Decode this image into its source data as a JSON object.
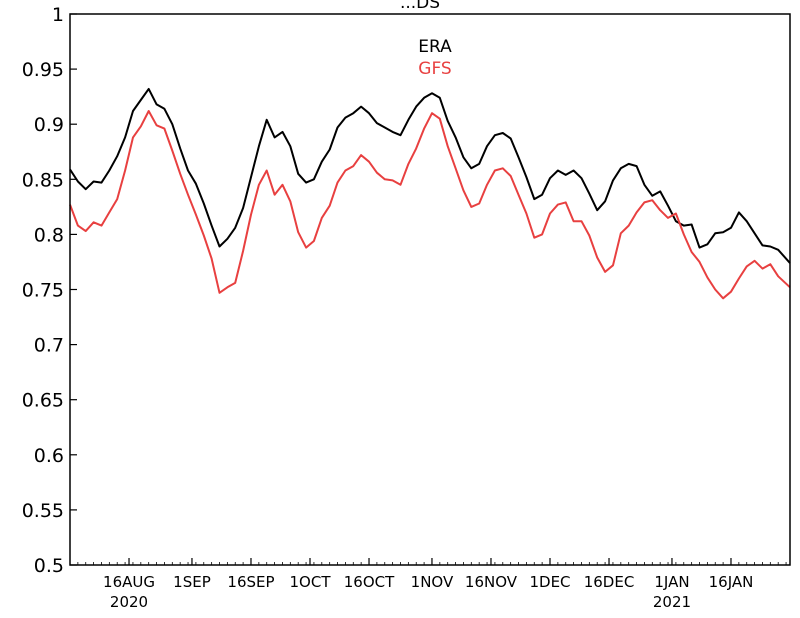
{
  "chart_data": {
    "type": "line",
    "title_fragment": "...DS",
    "xlabel": "",
    "ylabel": "",
    "ylim": [
      0.5,
      1.0
    ],
    "xlim": [
      "2020-08-01",
      "2021-01-31"
    ],
    "yticks": [
      "0.5",
      "0.55",
      "0.6",
      "0.65",
      "0.7",
      "0.75",
      "0.8",
      "0.85",
      "0.9",
      "0.95",
      "1"
    ],
    "xticks": [
      {
        "date": "2020-08-16",
        "label": "16AUG",
        "sublabel": "2020"
      },
      {
        "date": "2020-09-01",
        "label": "1SEP",
        "sublabel": ""
      },
      {
        "date": "2020-09-16",
        "label": "16SEP",
        "sublabel": ""
      },
      {
        "date": "2020-10-01",
        "label": "1OCT",
        "sublabel": ""
      },
      {
        "date": "2020-10-16",
        "label": "16OCT",
        "sublabel": ""
      },
      {
        "date": "2020-11-01",
        "label": "1NOV",
        "sublabel": ""
      },
      {
        "date": "2020-11-16",
        "label": "16NOV",
        "sublabel": ""
      },
      {
        "date": "2020-12-01",
        "label": "1DEC",
        "sublabel": ""
      },
      {
        "date": "2020-12-16",
        "label": "16DEC",
        "sublabel": ""
      },
      {
        "date": "2021-01-01",
        "label": "1JAN",
        "sublabel": "2021"
      },
      {
        "date": "2021-01-16",
        "label": "16JAN",
        "sublabel": ""
      }
    ],
    "grid": false,
    "legend_position": "top-center",
    "series": [
      {
        "name": "ERA",
        "color": "#000000",
        "points": [
          [
            "2020-08-01",
            0.859
          ],
          [
            "2020-08-03",
            0.848
          ],
          [
            "2020-08-05",
            0.841
          ],
          [
            "2020-08-07",
            0.848
          ],
          [
            "2020-08-09",
            0.847
          ],
          [
            "2020-08-11",
            0.858
          ],
          [
            "2020-08-13",
            0.871
          ],
          [
            "2020-08-15",
            0.888
          ],
          [
            "2020-08-17",
            0.912
          ],
          [
            "2020-08-19",
            0.922
          ],
          [
            "2020-08-21",
            0.932
          ],
          [
            "2020-08-23",
            0.918
          ],
          [
            "2020-08-25",
            0.914
          ],
          [
            "2020-08-27",
            0.9
          ],
          [
            "2020-08-29",
            0.878
          ],
          [
            "2020-08-31",
            0.858
          ],
          [
            "2020-09-02",
            0.846
          ],
          [
            "2020-09-04",
            0.828
          ],
          [
            "2020-09-06",
            0.808
          ],
          [
            "2020-09-08",
            0.789
          ],
          [
            "2020-09-10",
            0.796
          ],
          [
            "2020-09-12",
            0.806
          ],
          [
            "2020-09-14",
            0.824
          ],
          [
            "2020-09-16",
            0.852
          ],
          [
            "2020-09-18",
            0.88
          ],
          [
            "2020-09-20",
            0.904
          ],
          [
            "2020-09-22",
            0.888
          ],
          [
            "2020-09-24",
            0.893
          ],
          [
            "2020-09-26",
            0.88
          ],
          [
            "2020-09-28",
            0.855
          ],
          [
            "2020-09-30",
            0.847
          ],
          [
            "2020-10-02",
            0.85
          ],
          [
            "2020-10-04",
            0.866
          ],
          [
            "2020-10-06",
            0.877
          ],
          [
            "2020-10-08",
            0.897
          ],
          [
            "2020-10-10",
            0.906
          ],
          [
            "2020-10-12",
            0.91
          ],
          [
            "2020-10-14",
            0.916
          ],
          [
            "2020-10-16",
            0.91
          ],
          [
            "2020-10-18",
            0.901
          ],
          [
            "2020-10-20",
            0.897
          ],
          [
            "2020-10-22",
            0.893
          ],
          [
            "2020-10-24",
            0.89
          ],
          [
            "2020-10-26",
            0.904
          ],
          [
            "2020-10-28",
            0.916
          ],
          [
            "2020-10-30",
            0.924
          ],
          [
            "2020-11-01",
            0.928
          ],
          [
            "2020-11-03",
            0.924
          ],
          [
            "2020-11-05",
            0.903
          ],
          [
            "2020-11-07",
            0.888
          ],
          [
            "2020-11-09",
            0.87
          ],
          [
            "2020-11-11",
            0.86
          ],
          [
            "2020-11-13",
            0.864
          ],
          [
            "2020-11-15",
            0.88
          ],
          [
            "2020-11-17",
            0.89
          ],
          [
            "2020-11-19",
            0.892
          ],
          [
            "2020-11-21",
            0.887
          ],
          [
            "2020-11-23",
            0.87
          ],
          [
            "2020-11-25",
            0.852
          ],
          [
            "2020-11-27",
            0.832
          ],
          [
            "2020-11-29",
            0.836
          ],
          [
            "2020-12-01",
            0.851
          ],
          [
            "2020-12-03",
            0.858
          ],
          [
            "2020-12-05",
            0.854
          ],
          [
            "2020-12-07",
            0.858
          ],
          [
            "2020-12-09",
            0.851
          ],
          [
            "2020-12-11",
            0.837
          ],
          [
            "2020-12-13",
            0.822
          ],
          [
            "2020-12-15",
            0.83
          ],
          [
            "2020-12-17",
            0.849
          ],
          [
            "2020-12-19",
            0.86
          ],
          [
            "2020-12-21",
            0.864
          ],
          [
            "2020-12-23",
            0.862
          ],
          [
            "2020-12-25",
            0.845
          ],
          [
            "2020-12-27",
            0.835
          ],
          [
            "2020-12-29",
            0.839
          ],
          [
            "2020-12-31",
            0.826
          ],
          [
            "2021-01-02",
            0.812
          ],
          [
            "2021-01-04",
            0.808
          ],
          [
            "2021-01-06",
            0.809
          ],
          [
            "2021-01-08",
            0.788
          ],
          [
            "2021-01-10",
            0.791
          ],
          [
            "2021-01-12",
            0.801
          ],
          [
            "2021-01-14",
            0.802
          ],
          [
            "2021-01-16",
            0.806
          ],
          [
            "2021-01-18",
            0.82
          ],
          [
            "2021-01-20",
            0.812
          ],
          [
            "2021-01-22",
            0.801
          ],
          [
            "2021-01-24",
            0.79
          ],
          [
            "2021-01-26",
            0.789
          ],
          [
            "2021-01-28",
            0.786
          ],
          [
            "2021-01-31",
            0.774
          ]
        ]
      },
      {
        "name": "GFS",
        "color": "#e84040",
        "points": [
          [
            "2020-08-01",
            0.827
          ],
          [
            "2020-08-03",
            0.808
          ],
          [
            "2020-08-05",
            0.803
          ],
          [
            "2020-08-07",
            0.811
          ],
          [
            "2020-08-09",
            0.808
          ],
          [
            "2020-08-11",
            0.82
          ],
          [
            "2020-08-13",
            0.832
          ],
          [
            "2020-08-15",
            0.858
          ],
          [
            "2020-08-17",
            0.888
          ],
          [
            "2020-08-19",
            0.898
          ],
          [
            "2020-08-21",
            0.912
          ],
          [
            "2020-08-23",
            0.899
          ],
          [
            "2020-08-25",
            0.896
          ],
          [
            "2020-08-27",
            0.876
          ],
          [
            "2020-08-29",
            0.855
          ],
          [
            "2020-08-31",
            0.836
          ],
          [
            "2020-09-02",
            0.818
          ],
          [
            "2020-09-04",
            0.799
          ],
          [
            "2020-09-06",
            0.778
          ],
          [
            "2020-09-08",
            0.747
          ],
          [
            "2020-09-10",
            0.752
          ],
          [
            "2020-09-12",
            0.756
          ],
          [
            "2020-09-14",
            0.785
          ],
          [
            "2020-09-16",
            0.818
          ],
          [
            "2020-09-18",
            0.845
          ],
          [
            "2020-09-20",
            0.858
          ],
          [
            "2020-09-22",
            0.836
          ],
          [
            "2020-09-24",
            0.845
          ],
          [
            "2020-09-26",
            0.83
          ],
          [
            "2020-09-28",
            0.802
          ],
          [
            "2020-09-30",
            0.788
          ],
          [
            "2020-10-02",
            0.794
          ],
          [
            "2020-10-04",
            0.815
          ],
          [
            "2020-10-06",
            0.826
          ],
          [
            "2020-10-08",
            0.847
          ],
          [
            "2020-10-10",
            0.858
          ],
          [
            "2020-10-12",
            0.862
          ],
          [
            "2020-10-14",
            0.872
          ],
          [
            "2020-10-16",
            0.866
          ],
          [
            "2020-10-18",
            0.856
          ],
          [
            "2020-10-20",
            0.85
          ],
          [
            "2020-10-22",
            0.849
          ],
          [
            "2020-10-24",
            0.845
          ],
          [
            "2020-10-26",
            0.864
          ],
          [
            "2020-10-28",
            0.878
          ],
          [
            "2020-10-30",
            0.896
          ],
          [
            "2020-11-01",
            0.91
          ],
          [
            "2020-11-03",
            0.905
          ],
          [
            "2020-11-05",
            0.88
          ],
          [
            "2020-11-07",
            0.86
          ],
          [
            "2020-11-09",
            0.84
          ],
          [
            "2020-11-11",
            0.825
          ],
          [
            "2020-11-13",
            0.828
          ],
          [
            "2020-11-15",
            0.845
          ],
          [
            "2020-11-17",
            0.858
          ],
          [
            "2020-11-19",
            0.86
          ],
          [
            "2020-11-21",
            0.853
          ],
          [
            "2020-11-23",
            0.836
          ],
          [
            "2020-11-25",
            0.819
          ],
          [
            "2020-11-27",
            0.797
          ],
          [
            "2020-11-29",
            0.8
          ],
          [
            "2020-12-01",
            0.819
          ],
          [
            "2020-12-03",
            0.827
          ],
          [
            "2020-12-05",
            0.829
          ],
          [
            "2020-12-07",
            0.812
          ],
          [
            "2020-12-09",
            0.812
          ],
          [
            "2020-12-11",
            0.799
          ],
          [
            "2020-12-13",
            0.779
          ],
          [
            "2020-12-15",
            0.766
          ],
          [
            "2020-12-17",
            0.772
          ],
          [
            "2020-12-19",
            0.801
          ],
          [
            "2020-12-21",
            0.808
          ],
          [
            "2020-12-23",
            0.82
          ],
          [
            "2020-12-25",
            0.829
          ],
          [
            "2020-12-27",
            0.831
          ],
          [
            "2020-12-29",
            0.822
          ],
          [
            "2020-12-31",
            0.815
          ],
          [
            "2021-01-02",
            0.819
          ],
          [
            "2021-01-04",
            0.8
          ],
          [
            "2021-01-06",
            0.784
          ],
          [
            "2021-01-08",
            0.775
          ],
          [
            "2021-01-10",
            0.761
          ],
          [
            "2021-01-12",
            0.75
          ],
          [
            "2021-01-14",
            0.742
          ],
          [
            "2021-01-16",
            0.748
          ],
          [
            "2021-01-18",
            0.76
          ],
          [
            "2021-01-20",
            0.771
          ],
          [
            "2021-01-22",
            0.776
          ],
          [
            "2021-01-24",
            0.769
          ],
          [
            "2021-01-26",
            0.773
          ],
          [
            "2021-01-28",
            0.762
          ],
          [
            "2021-01-31",
            0.752
          ]
        ]
      }
    ]
  }
}
